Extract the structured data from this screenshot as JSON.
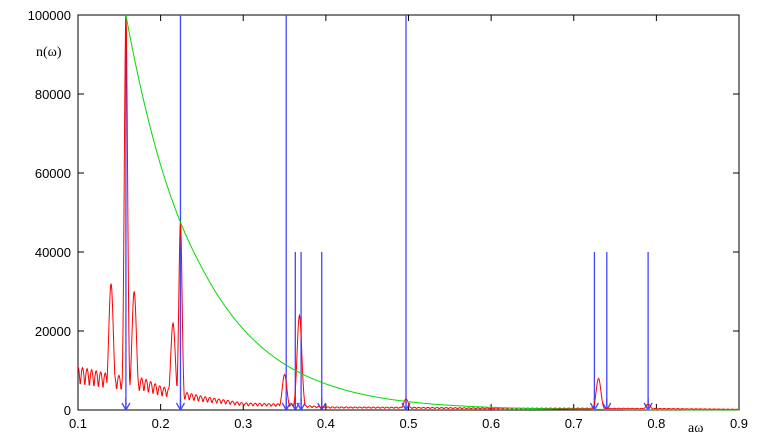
{
  "chart_data": {
    "type": "line",
    "title": "",
    "xlabel": "aω",
    "ylabel": "n(ω)",
    "xlim": [
      0.1,
      0.9
    ],
    "ylim": [
      0,
      100000
    ],
    "grid": false,
    "xticks": [
      "0.1",
      "0.2",
      "0.3",
      "0.4",
      "0.5",
      "0.6",
      "0.7",
      "0.8",
      "0.9"
    ],
    "yticks": [
      "0",
      "20000",
      "40000",
      "60000",
      "80000",
      "100000"
    ],
    "series": [
      {
        "color": "#ff0000",
        "style": "oscillating spectrum",
        "peaks": [
          {
            "x": 0.14,
            "y": 32000
          },
          {
            "x": 0.158,
            "y": 100000
          },
          {
            "x": 0.168,
            "y": 30000
          },
          {
            "x": 0.215,
            "y": 22000
          },
          {
            "x": 0.224,
            "y": 47500
          },
          {
            "x": 0.35,
            "y": 9000
          },
          {
            "x": 0.368,
            "y": 24000
          },
          {
            "x": 0.497,
            "y": 2800
          },
          {
            "x": 0.73,
            "y": 8000
          },
          {
            "x": 0.79,
            "y": 1500
          }
        ],
        "baseline": [
          {
            "x": 0.1,
            "y": 11000
          },
          {
            "x": 0.12,
            "y": 10000
          },
          {
            "x": 0.14,
            "y": 9000
          },
          {
            "x": 0.18,
            "y": 8000
          },
          {
            "x": 0.2,
            "y": 6000
          },
          {
            "x": 0.25,
            "y": 3500
          },
          {
            "x": 0.3,
            "y": 1800
          },
          {
            "x": 0.35,
            "y": 1500
          },
          {
            "x": 0.4,
            "y": 800
          },
          {
            "x": 0.5,
            "y": 700
          },
          {
            "x": 0.6,
            "y": 500
          },
          {
            "x": 0.7,
            "y": 500
          },
          {
            "x": 0.8,
            "y": 400
          },
          {
            "x": 0.9,
            "y": 200
          }
        ]
      },
      {
        "color": "#00dd00",
        "style": "exponential decay",
        "x": [
          0.158,
          0.2,
          0.224,
          0.25,
          0.3,
          0.35,
          0.4,
          0.5,
          0.6,
          0.7,
          0.8,
          0.9
        ],
        "y": [
          100000,
          62000,
          47500,
          36000,
          20500,
          11600,
          6600,
          2100,
          680,
          220,
          70,
          20
        ]
      }
    ],
    "vertical_lines": [
      {
        "x": 0.158,
        "y": 100000
      },
      {
        "x": 0.224,
        "y": 100000
      },
      {
        "x": 0.352,
        "y": 100000
      },
      {
        "x": 0.363,
        "y": 40000
      },
      {
        "x": 0.37,
        "y": 40000
      },
      {
        "x": 0.395,
        "y": 40000
      },
      {
        "x": 0.497,
        "y": 100000
      },
      {
        "x": 0.725,
        "y": 40000
      },
      {
        "x": 0.74,
        "y": 40000
      },
      {
        "x": 0.79,
        "y": 40000
      }
    ],
    "arrows_x": [
      0.158,
      0.224,
      0.352,
      0.363,
      0.37,
      0.395,
      0.497,
      0.725,
      0.74,
      0.79
    ],
    "colors": {
      "spectrum": "#ff0000",
      "envelope": "#00dd00",
      "lines": "#4444ff",
      "axes": "#000000"
    }
  }
}
